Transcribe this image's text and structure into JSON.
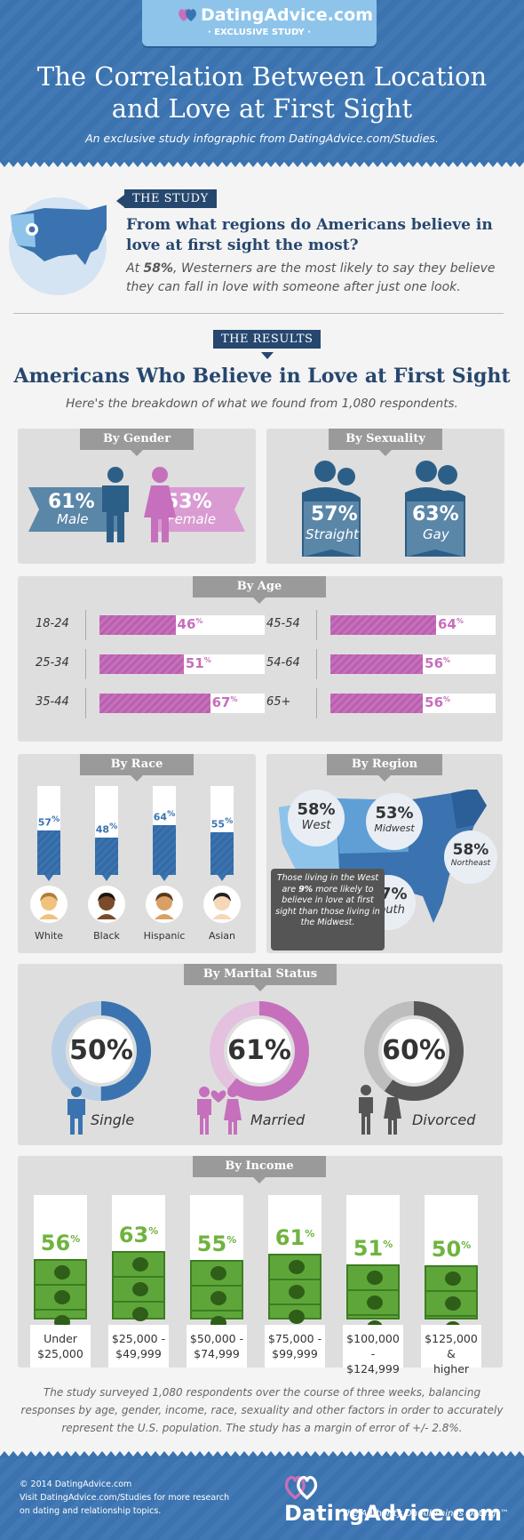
{
  "header": {
    "brand": "DatingAdvice.com",
    "badge_sub": "· EXCLUSIVE STUDY ·",
    "title_line1": "The Correlation Between Location",
    "title_line2": "and Love at First Sight",
    "subtitle": "An exclusive study infographic from DatingAdvice.com/Studies."
  },
  "study": {
    "tag": "THE STUDY",
    "question": "From what regions do Americans believe in love at first sight the most?",
    "answer_prefix": "At ",
    "answer_pct": "58%",
    "answer_rest": ", Westerners are the most likely to say they believe they can fall in love with someone after just one look."
  },
  "results": {
    "tag": "THE RESULTS",
    "title": "Americans Who Believe in Love at First Sight",
    "subtitle": "Here's the breakdown of what we found from 1,080 respondents."
  },
  "colors": {
    "blue": "#3a73b0",
    "navy": "#26476e",
    "pink": "#c66fbc",
    "gray": "#555555",
    "green": "#6fb33f",
    "light_blue": "#8ec4ea"
  },
  "chart_data": [
    {
      "type": "bar",
      "title": "By Gender",
      "categories": [
        "Male",
        "Female"
      ],
      "values": [
        61,
        53
      ],
      "labels": [
        "61%",
        "53%"
      ]
    },
    {
      "type": "bar",
      "title": "By Sexuality",
      "categories": [
        "Straight",
        "Gay"
      ],
      "values": [
        57,
        63
      ],
      "labels": [
        "57%",
        "63%"
      ]
    },
    {
      "type": "bar",
      "title": "By Age",
      "categories": [
        "18-24",
        "25-34",
        "35-44",
        "45-54",
        "54-64",
        "65+"
      ],
      "values": [
        46,
        51,
        67,
        64,
        56,
        56
      ],
      "ylim": [
        0,
        100
      ]
    },
    {
      "type": "bar",
      "title": "By Race",
      "categories": [
        "White",
        "Black",
        "Hispanic",
        "Asian"
      ],
      "values": [
        57,
        48,
        64,
        55
      ],
      "ylim": [
        0,
        100
      ]
    },
    {
      "type": "bar",
      "title": "By Region",
      "categories": [
        "West",
        "Midwest",
        "Northeast",
        "South"
      ],
      "values": [
        58,
        53,
        58,
        57
      ],
      "labels": [
        "58%",
        "53%",
        "58%",
        "57%"
      ],
      "annotation": "Those living in the West are 9% more likely to believe in love at first sight than those living in the Midwest."
    },
    {
      "type": "pie",
      "title": "By Marital Status",
      "categories": [
        "Single",
        "Married",
        "Divorced"
      ],
      "values": [
        50,
        61,
        60
      ],
      "labels": [
        "50%",
        "61%",
        "60%"
      ]
    },
    {
      "type": "bar",
      "title": "By Income",
      "categories": [
        "Under $25,000",
        "$25,000 - $49,999",
        "$50,000 - $74,999",
        "$75,000 - $99,999",
        "$100,000 - $124,999",
        "$125,000 & higher"
      ],
      "values": [
        56,
        63,
        55,
        61,
        51,
        50
      ]
    }
  ],
  "panels": {
    "gender": {
      "tab": "By Gender",
      "male_pct": "61%",
      "male_label": "Male",
      "female_pct": "53%",
      "female_label": "Female"
    },
    "sexuality": {
      "tab": "By Sexuality",
      "straight_pct": "57%",
      "straight_label": "Straight",
      "gay_pct": "63%",
      "gay_label": "Gay"
    },
    "age": {
      "tab": "By Age"
    },
    "race": {
      "tab": "By Race"
    },
    "region": {
      "tab": "By Region",
      "west_pct": "58%",
      "west_label": "West",
      "midwest_pct": "53%",
      "midwest_label": "Midwest",
      "northeast_pct": "58%",
      "northeast_label": "Northeast",
      "south_pct": "57%",
      "south_label": "South",
      "note_a": "Those living in the West are ",
      "note_b": "9%",
      "note_c": " more likely to believe in love at first sight than those living in the Midwest."
    },
    "marital": {
      "tab": "By Marital Status",
      "single_pct": "50%",
      "single_label": "Single",
      "married_pct": "61%",
      "married_label": "Married",
      "divorced_pct": "60%",
      "divorced_label": "Divorced"
    },
    "income": {
      "tab": "By Income",
      "labels": [
        [
          "Under",
          "$25,000"
        ],
        [
          "$25,000 -",
          "$49,999"
        ],
        [
          "$50,000 -",
          "$74,999"
        ],
        [
          "$75,000 -",
          "$99,999"
        ],
        [
          "$100,000 -",
          "$124,999"
        ],
        [
          "$125,000 &",
          "higher"
        ]
      ]
    }
  },
  "footnote": "The study surveyed 1,080 respondents over the course of three weeks, balancing responses by age, gender, income, race, sexuality and other factors in order to accurately represent the U.S. population. The study has a margin of error of +/- 2.8%.",
  "footer": {
    "copyright": "© 2014 DatingAdvice.com",
    "visit": "Visit DatingAdvice.com/Studies for more research on dating and relationship topics.",
    "brand": "DatingAdvice.com",
    "tagline": "\"The Authority On All Things Dating\"™"
  }
}
